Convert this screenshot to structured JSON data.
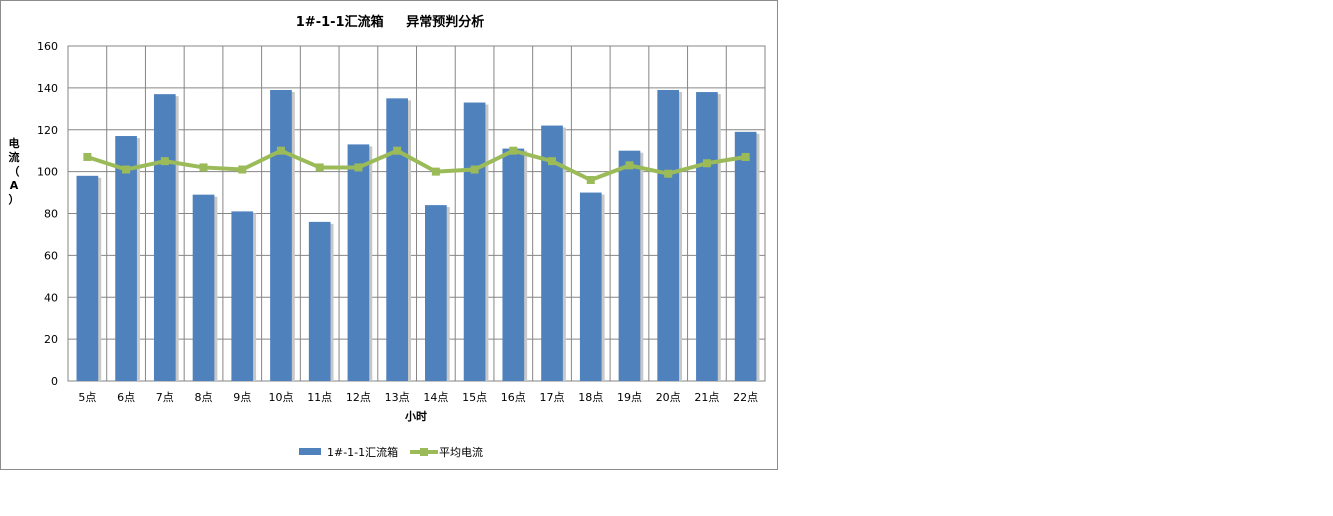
{
  "chart_data": {
    "type": "bar",
    "title": "1#-1-1汇流箱     异常预判分析",
    "xlabel": "小时",
    "ylabel": "电流（A）",
    "ylim": [
      0,
      160
    ],
    "yticks": [
      0,
      20,
      40,
      60,
      80,
      100,
      120,
      140,
      160
    ],
    "grid": true,
    "legend_position": "bottom",
    "categories": [
      "5点",
      "6点",
      "7点",
      "8点",
      "9点",
      "10点",
      "11点",
      "12点",
      "13点",
      "14点",
      "15点",
      "16点",
      "17点",
      "18点",
      "19点",
      "20点",
      "21点",
      "22点"
    ],
    "series": [
      {
        "name": "1#-1-1汇流箱",
        "kind": "bar",
        "color": "#4f81bd",
        "values": [
          98,
          117,
          137,
          89,
          81,
          139,
          76,
          113,
          135,
          84,
          133,
          111,
          122,
          90,
          110,
          139,
          138,
          119
        ]
      },
      {
        "name": "平均电流",
        "kind": "line",
        "color": "#9bbb59",
        "values": [
          107,
          101,
          105,
          102,
          101,
          110,
          102,
          102,
          110,
          100,
          101,
          110,
          105,
          96,
          103,
          99,
          104,
          107
        ]
      }
    ]
  }
}
